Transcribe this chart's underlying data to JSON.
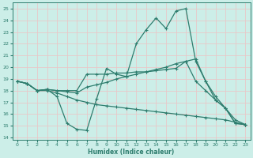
{
  "xlabel": "Humidex (Indice chaleur)",
  "bg_color": "#cceee8",
  "grid_color": "#b0d8d0",
  "line_color": "#2e7d6e",
  "xlim": [
    -0.5,
    23.5
  ],
  "ylim": [
    13.8,
    25.5
  ],
  "xticks": [
    0,
    1,
    2,
    3,
    4,
    5,
    6,
    7,
    8,
    9,
    10,
    11,
    12,
    13,
    14,
    15,
    16,
    17,
    18,
    19,
    20,
    21,
    22,
    23
  ],
  "yticks": [
    14,
    15,
    16,
    17,
    18,
    19,
    20,
    21,
    22,
    23,
    24,
    25
  ],
  "line1_x": [
    0,
    1,
    2,
    3,
    4,
    5,
    6,
    7,
    8,
    9,
    10,
    11,
    12,
    13,
    14,
    15,
    16,
    17,
    18,
    19,
    20,
    21,
    22,
    23
  ],
  "line1_y": [
    18.8,
    18.6,
    18.0,
    18.1,
    17.5,
    15.2,
    14.7,
    14.6,
    17.3,
    19.9,
    19.4,
    19.2,
    22.0,
    23.2,
    24.2,
    23.3,
    24.8,
    25.0,
    20.5,
    18.8,
    17.2,
    16.5,
    15.2,
    15.1
  ],
  "line2_x": [
    0,
    1,
    2,
    3,
    4,
    5,
    6,
    7,
    8,
    9,
    10,
    11,
    12,
    13,
    14,
    15,
    16,
    17,
    18,
    19,
    20,
    21,
    22,
    23
  ],
  "line2_y": [
    18.8,
    18.6,
    18.0,
    18.1,
    18.0,
    18.0,
    18.0,
    19.4,
    19.4,
    19.4,
    19.5,
    19.5,
    19.6,
    19.6,
    19.7,
    19.8,
    19.9,
    20.5,
    18.8,
    18.0,
    17.2,
    16.5,
    15.2,
    15.1
  ],
  "line3_x": [
    0,
    1,
    2,
    3,
    4,
    5,
    6,
    7,
    8,
    9,
    10,
    11,
    12,
    13,
    14,
    15,
    16,
    17,
    18,
    19,
    20,
    21,
    22,
    23
  ],
  "line3_y": [
    18.8,
    18.6,
    18.0,
    18.1,
    18.0,
    17.9,
    17.8,
    18.3,
    18.5,
    18.7,
    19.0,
    19.2,
    19.4,
    19.6,
    19.8,
    20.0,
    20.3,
    20.5,
    20.7,
    18.8,
    17.5,
    16.5,
    15.5,
    15.1
  ],
  "line4_x": [
    0,
    1,
    2,
    3,
    4,
    5,
    6,
    7,
    8,
    9,
    10,
    11,
    12,
    13,
    14,
    15,
    16,
    17,
    18,
    19,
    20,
    21,
    22,
    23
  ],
  "line4_y": [
    18.8,
    18.6,
    18.0,
    18.0,
    17.8,
    17.5,
    17.2,
    17.0,
    16.8,
    16.7,
    16.6,
    16.5,
    16.4,
    16.3,
    16.2,
    16.1,
    16.0,
    15.9,
    15.8,
    15.7,
    15.6,
    15.5,
    15.3,
    15.1
  ]
}
